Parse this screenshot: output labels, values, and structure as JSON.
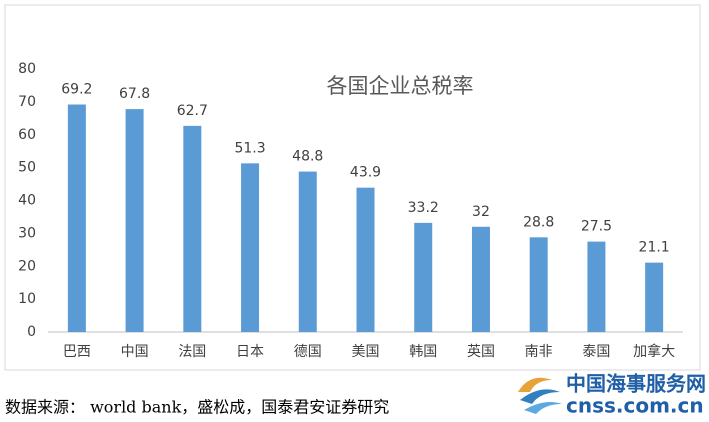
{
  "chart_data": {
    "type": "bar",
    "title": "各国企业总税率",
    "categories": [
      "巴西",
      "中国",
      "法国",
      "日本",
      "德国",
      "美国",
      "韩国",
      "英国",
      "南非",
      "泰国",
      "加拿大"
    ],
    "values": [
      69.2,
      67.8,
      62.7,
      51.3,
      48.8,
      43.9,
      33.2,
      32,
      28.8,
      27.5,
      21.1
    ],
    "color": "#5b9bd5",
    "ylim": [
      0,
      80
    ],
    "yticks": [
      0,
      10,
      20,
      30,
      40,
      50,
      60,
      70,
      80
    ],
    "grid": false
  },
  "source": "数据来源： world bank，盛松成，国泰君安证券研究",
  "watermark": {
    "name": "中国海事服务网",
    "url": "cnss.com.cn"
  }
}
